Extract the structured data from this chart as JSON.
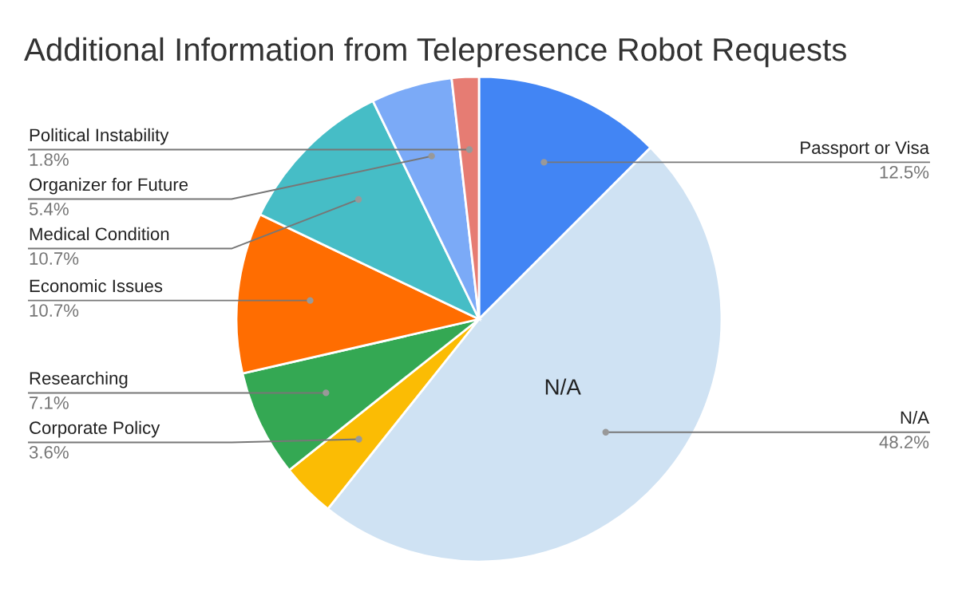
{
  "chart_data": {
    "type": "pie",
    "title": "Additional Information from Telepresence Robot Requests",
    "categories": [
      "Passport or Visa",
      "N/A",
      "Corporate Policy",
      "Researching",
      "Economic Issues",
      "Medical Condition",
      "Organizer for Future",
      "Political Instability"
    ],
    "values": [
      12.5,
      48.2,
      3.6,
      7.1,
      10.7,
      10.7,
      5.4,
      1.8
    ],
    "colors": [
      "#4285f4",
      "#cfe2f3",
      "#fbbc04",
      "#34a853",
      "#ff6d01",
      "#46bdc6",
      "#7baaf7",
      "#e67c73"
    ],
    "value_labels": [
      "12.5%",
      "48.2%",
      "3.6%",
      "7.1%",
      "10.7%",
      "10.7%",
      "5.4%",
      "1.8%"
    ],
    "annotations": [
      {
        "text": "N/A",
        "x": "N/A"
      }
    ],
    "legend": false
  }
}
